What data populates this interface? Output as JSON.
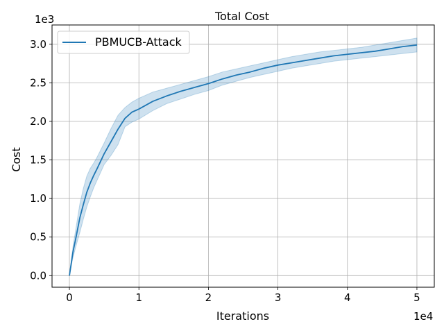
{
  "chart_data": {
    "type": "line",
    "title": "Total Cost",
    "xlabel": "Iterations",
    "ylabel": "Cost",
    "x_offset_text": "1e4",
    "y_offset_text": "1e3",
    "xlim": [
      -2500,
      52500
    ],
    "ylim": [
      -150,
      3250
    ],
    "x_ticks": [
      0,
      10000,
      20000,
      30000,
      40000,
      50000
    ],
    "x_tick_labels": [
      "0",
      "1",
      "2",
      "3",
      "4",
      "5"
    ],
    "y_ticks": [
      0,
      500,
      1000,
      1500,
      2000,
      2500,
      3000
    ],
    "y_tick_labels": [
      "0.0",
      "0.5",
      "1.0",
      "1.5",
      "2.0",
      "2.5",
      "3.0"
    ],
    "grid": true,
    "legend_position": "top-left",
    "colors": {
      "line": "#1f77b4",
      "band": "#1f77b4",
      "grid": "#b0b0b0"
    },
    "series": [
      {
        "name": "PBMUCB-Attack",
        "x": [
          0,
          500,
          1000,
          1500,
          2000,
          2500,
          3000,
          3500,
          4000,
          5000,
          6000,
          7000,
          8000,
          9000,
          10000,
          12000,
          14000,
          16000,
          18000,
          20000,
          22000,
          24000,
          26000,
          28000,
          30000,
          32000,
          34000,
          36000,
          38000,
          40000,
          42000,
          44000,
          46000,
          48000,
          50000
        ],
        "y": [
          0,
          300,
          520,
          750,
          920,
          1080,
          1200,
          1300,
          1390,
          1580,
          1740,
          1900,
          2040,
          2120,
          2160,
          2260,
          2330,
          2390,
          2440,
          2490,
          2550,
          2600,
          2640,
          2690,
          2730,
          2760,
          2790,
          2820,
          2850,
          2870,
          2890,
          2910,
          2940,
          2970,
          2990
        ],
        "lower": [
          0,
          230,
          400,
          560,
          730,
          890,
          1020,
          1140,
          1240,
          1440,
          1560,
          1700,
          1930,
          1990,
          2030,
          2140,
          2230,
          2290,
          2350,
          2400,
          2470,
          2520,
          2570,
          2610,
          2650,
          2690,
          2720,
          2750,
          2780,
          2800,
          2820,
          2840,
          2860,
          2880,
          2900
        ],
        "upper": [
          0,
          370,
          650,
          930,
          1130,
          1290,
          1390,
          1460,
          1540,
          1720,
          1910,
          2080,
          2180,
          2250,
          2300,
          2380,
          2430,
          2480,
          2530,
          2580,
          2640,
          2680,
          2720,
          2760,
          2800,
          2840,
          2870,
          2900,
          2920,
          2940,
          2960,
          2990,
          3020,
          3050,
          3080
        ]
      }
    ]
  }
}
